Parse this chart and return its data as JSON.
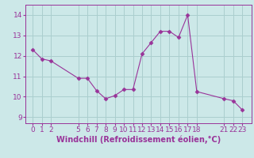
{
  "x": [
    0,
    1,
    2,
    5,
    6,
    7,
    8,
    9,
    10,
    11,
    12,
    13,
    14,
    15,
    16,
    17,
    18,
    21,
    22,
    23
  ],
  "y": [
    12.3,
    11.85,
    11.75,
    10.9,
    10.9,
    10.3,
    9.9,
    10.05,
    10.35,
    10.35,
    12.1,
    12.65,
    13.2,
    13.2,
    12.9,
    14.0,
    10.25,
    9.9,
    9.8,
    9.35
  ],
  "xticks": [
    0,
    1,
    2,
    5,
    6,
    7,
    8,
    9,
    10,
    11,
    12,
    13,
    14,
    15,
    16,
    17,
    18,
    21,
    22,
    23
  ],
  "yticks": [
    9,
    10,
    11,
    12,
    13,
    14
  ],
  "ylim": [
    8.7,
    14.5
  ],
  "xlim": [
    -0.8,
    24.0
  ],
  "xlabel": "Windchill (Refroidissement éolien,°C)",
  "line_color": "#993399",
  "marker": "D",
  "marker_size": 2.5,
  "bg_color": "#cce8e8",
  "grid_color": "#aacece",
  "tick_fontsize": 6.5,
  "label_fontsize": 7.0
}
